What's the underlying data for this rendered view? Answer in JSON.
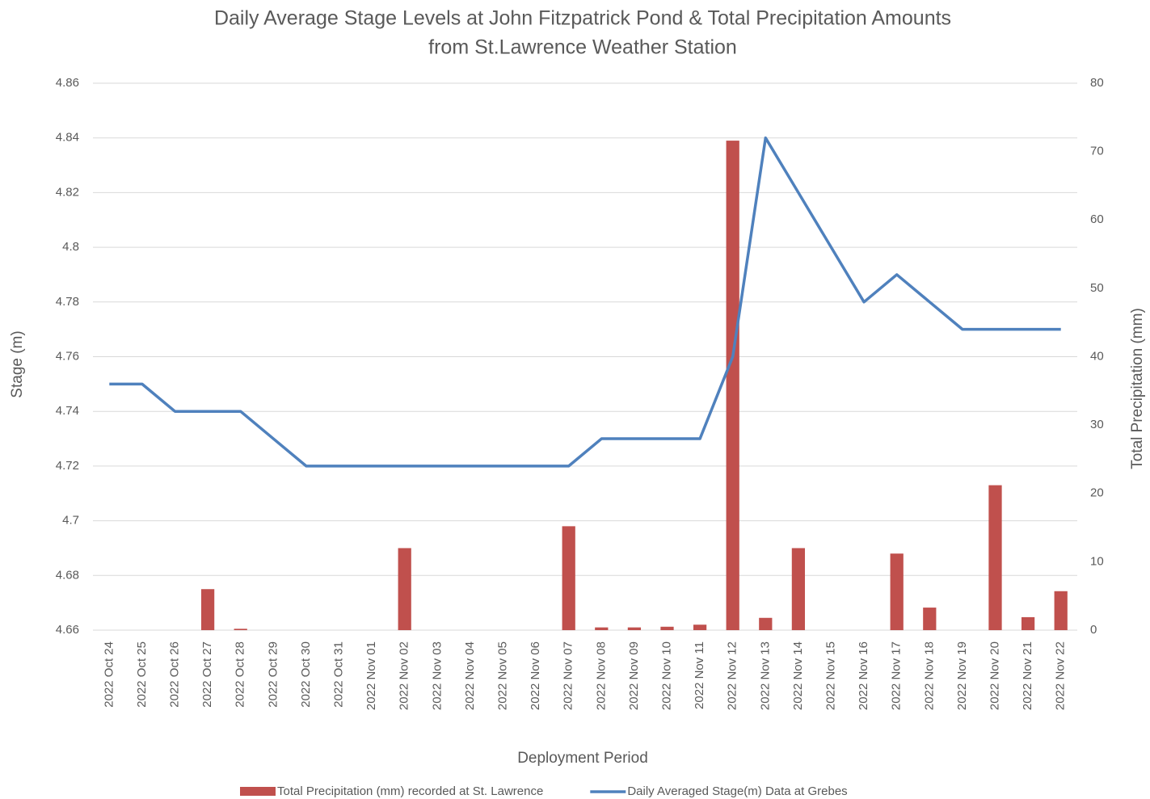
{
  "chart_data": {
    "type": "bar_line",
    "title": [
      "Daily Average Stage Levels at John Fitzpatrick Pond & Total Precipitation Amounts",
      "from St.Lawrence Weather Station"
    ],
    "x_label": "Deployment Period",
    "y_label": "Stage (m)",
    "y2_label": "Total Precipitation (mm)",
    "categories": [
      "2022 Oct 24",
      "2022 Oct 25",
      "2022 Oct 26",
      "2022 Oct 27",
      "2022 Oct 28",
      "2022 Oct 29",
      "2022 Oct 30",
      "2022 Oct 31",
      "2022 Nov 01",
      "2022 Nov 02",
      "2022 Nov 03",
      "2022 Nov 04",
      "2022 Nov 05",
      "2022 Nov 06",
      "2022 Nov 07",
      "2022 Nov 08",
      "2022 Nov 09",
      "2022 Nov 10",
      "2022 Nov 11",
      "2022 Nov 12",
      "2022 Nov 13",
      "2022 Nov 14",
      "2022 Nov 15",
      "2022 Nov 16",
      "2022 Nov 17",
      "2022 Nov 18",
      "2022 Nov 19",
      "2022 Nov 20",
      "2022 Nov 21",
      "2022 Nov 22"
    ],
    "series": [
      {
        "name": "Total Precipitation (mm) recorded at St. Lawrence",
        "type": "bar",
        "axis": "y2",
        "color": "#c0504d",
        "values": [
          0,
          0,
          0,
          6,
          0.2,
          0,
          0,
          0,
          0,
          12,
          0,
          0,
          0,
          0,
          15.2,
          0.4,
          0.4,
          0.5,
          0.8,
          71.6,
          1.8,
          12,
          0,
          0,
          11.2,
          3.3,
          0,
          21.2,
          1.9,
          5.7
        ]
      },
      {
        "name": "Daily Averaged Stage(m) Data at Grebes",
        "type": "line",
        "axis": "y",
        "color": "#4f81bd",
        "values": [
          4.75,
          4.75,
          4.74,
          4.74,
          4.74,
          4.73,
          4.72,
          4.72,
          4.72,
          4.72,
          4.72,
          4.72,
          4.72,
          4.72,
          4.72,
          4.73,
          4.73,
          4.73,
          4.73,
          4.76,
          4.84,
          4.82,
          4.8,
          4.78,
          4.79,
          4.78,
          4.77,
          4.77,
          4.77,
          4.77
        ]
      }
    ],
    "ylim": [
      4.66,
      4.86
    ],
    "yticks": [
      4.66,
      4.68,
      4.7,
      4.72,
      4.74,
      4.76,
      4.78,
      4.8,
      4.82,
      4.84,
      4.86
    ],
    "y2lim": [
      0,
      80
    ],
    "y2ticks": [
      0,
      10,
      20,
      30,
      40,
      50,
      60,
      70,
      80
    ],
    "grid": true,
    "legend": "bottom"
  }
}
